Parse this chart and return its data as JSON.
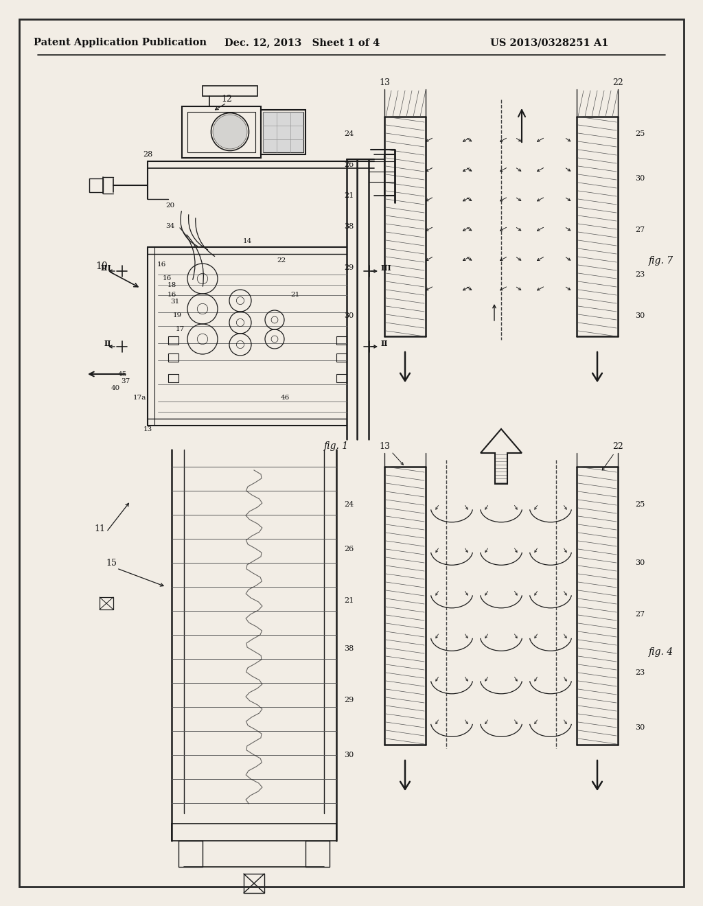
{
  "background_color": "#f0ece4",
  "page_bg": "#f2ede5",
  "header_left": "Patent Application Publication",
  "header_center": "Dec. 12, 2013   Sheet 1 of 4",
  "header_right": "US 2013/0328251 A1",
  "line_color": "#1a1a1a",
  "text_color": "#111111",
  "fig1_label": "fig. 1",
  "fig4_label": "fig. 4",
  "fig7_label": "fig. 7"
}
